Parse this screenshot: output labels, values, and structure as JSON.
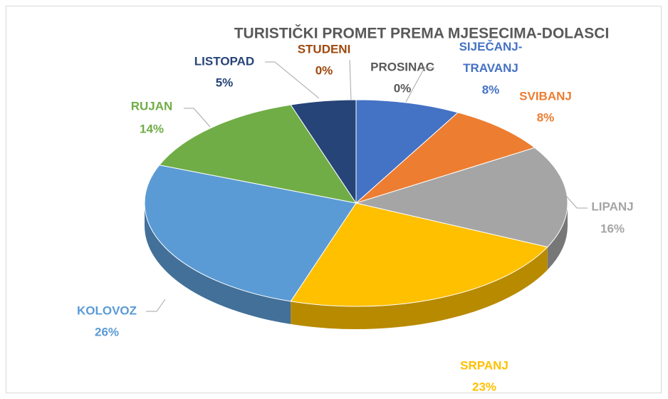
{
  "chart_data": {
    "type": "pie",
    "title": "TURISTIČKI PROMET PREMA MJESECIMA-DOLASCI",
    "categories": [
      "SIJEČANJ-TRAVANJ",
      "SVIBANJ",
      "LIPANJ",
      "SRPANJ",
      "KOLOVOZ",
      "RUJAN",
      "LISTOPAD",
      "STUDENI",
      "PROSINAC"
    ],
    "values": [
      8,
      8,
      16,
      23,
      26,
      14,
      5,
      0,
      0
    ],
    "value_labels": [
      "8%",
      "8%",
      "16%",
      "23%",
      "26%",
      "14%",
      "5%",
      "0%",
      "0%"
    ],
    "colors": [
      "#4472c4",
      "#ed7d31",
      "#a5a5a5",
      "#ffc000",
      "#5b9bd5",
      "#70ad47",
      "#264478",
      "#9e480e",
      "#636363"
    ]
  }
}
